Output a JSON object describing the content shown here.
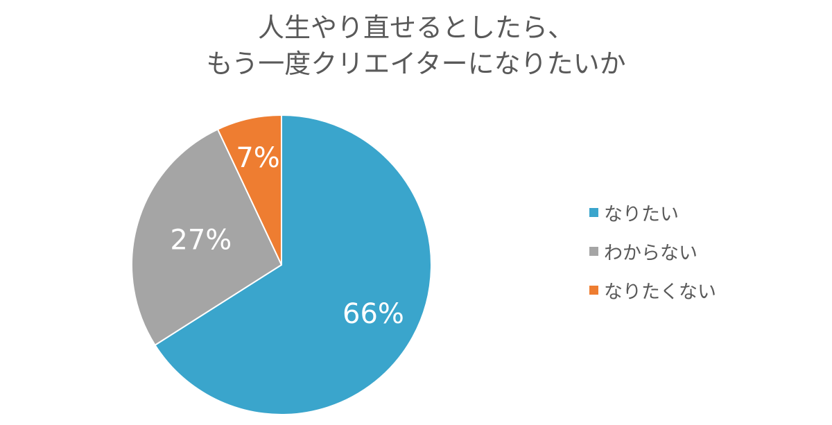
{
  "chart_data": {
    "type": "pie",
    "title": "人生やり直せるとしたら、\nもう一度クリエイターになりたいか",
    "title_lines": [
      "人生やり直せるとしたら、",
      "もう一度クリエイターになりたいか"
    ],
    "categories": [
      "なりたい",
      "わからない",
      "なりたくない"
    ],
    "values": [
      66,
      27,
      7
    ],
    "data_labels": [
      "66%",
      "27%",
      "7%"
    ],
    "colors": [
      "#3aa5cc",
      "#a5a5a5",
      "#ee7d31"
    ],
    "start_angle": "12 o'clock",
    "direction": "clockwise",
    "legend_position": "right"
  }
}
